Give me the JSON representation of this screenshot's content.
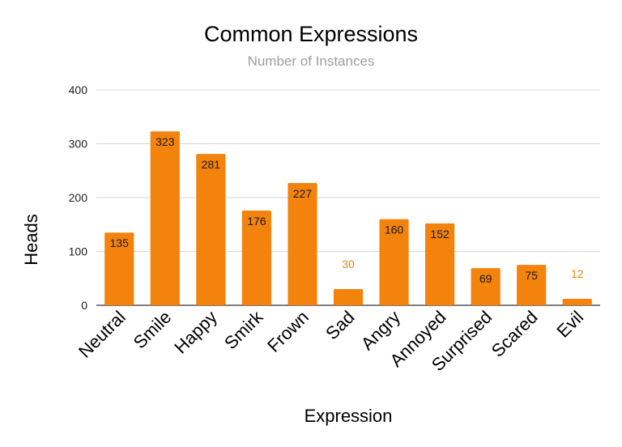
{
  "chart_data": {
    "type": "bar",
    "title": "Common Expressions",
    "subtitle": "Number of Instances",
    "xlabel": "Expression",
    "ylabel": "Heads",
    "categories": [
      "Neutral",
      "Smile",
      "Happy",
      "Smirk",
      "Frown",
      "Sad",
      "Angry",
      "Annoyed",
      "Surprised",
      "Scared",
      "Evil"
    ],
    "values": [
      135,
      323,
      281,
      176,
      227,
      30,
      160,
      152,
      69,
      75,
      12
    ],
    "ylim": [
      0,
      400
    ],
    "yticks": [
      0,
      100,
      200,
      300,
      400
    ],
    "grid": true,
    "legend": "none",
    "bar_color": "#f4830d",
    "outside_label_color": "#f4830d"
  }
}
